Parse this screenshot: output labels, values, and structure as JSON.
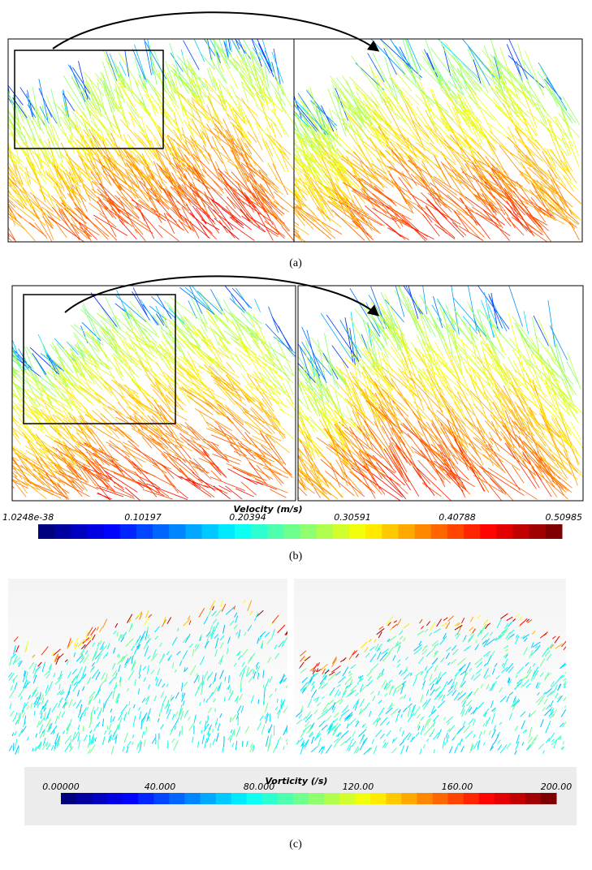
{
  "panels": [
    {
      "label": "(a)"
    },
    {
      "label": "(b)"
    },
    {
      "label": "(c)"
    }
  ],
  "velocity_colorbar": {
    "title": "Velocity (m/s)",
    "ticks": [
      "1.0248e-38",
      "0.10197",
      "0.20394",
      "0.30591",
      "0.40788",
      "0.50985"
    ]
  },
  "vorticity_colorbar": {
    "title": "Vorticity (/s)",
    "ticks": [
      "0.00000",
      "40.000",
      "80.000",
      "120.00",
      "160.00",
      "200.00"
    ]
  }
}
